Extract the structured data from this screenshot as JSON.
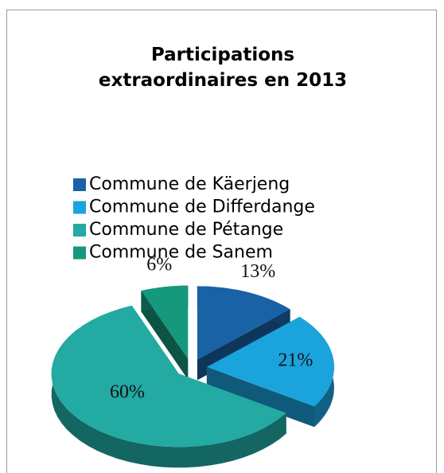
{
  "chart_data": {
    "type": "pie",
    "title": [
      "Participations",
      "extraordinaires en 2013"
    ],
    "categories": [
      "Commune de Käerjeng",
      "Commune de Differdange",
      "Commune de Pétange",
      "Commune de Sanem"
    ],
    "values": [
      13,
      21,
      60,
      6
    ],
    "value_labels": [
      "13%",
      "21%",
      "60%",
      "6%"
    ],
    "colors": [
      "#1a62a6",
      "#1ba3dd",
      "#22aaa3",
      "#16987c"
    ],
    "legend": "top"
  }
}
